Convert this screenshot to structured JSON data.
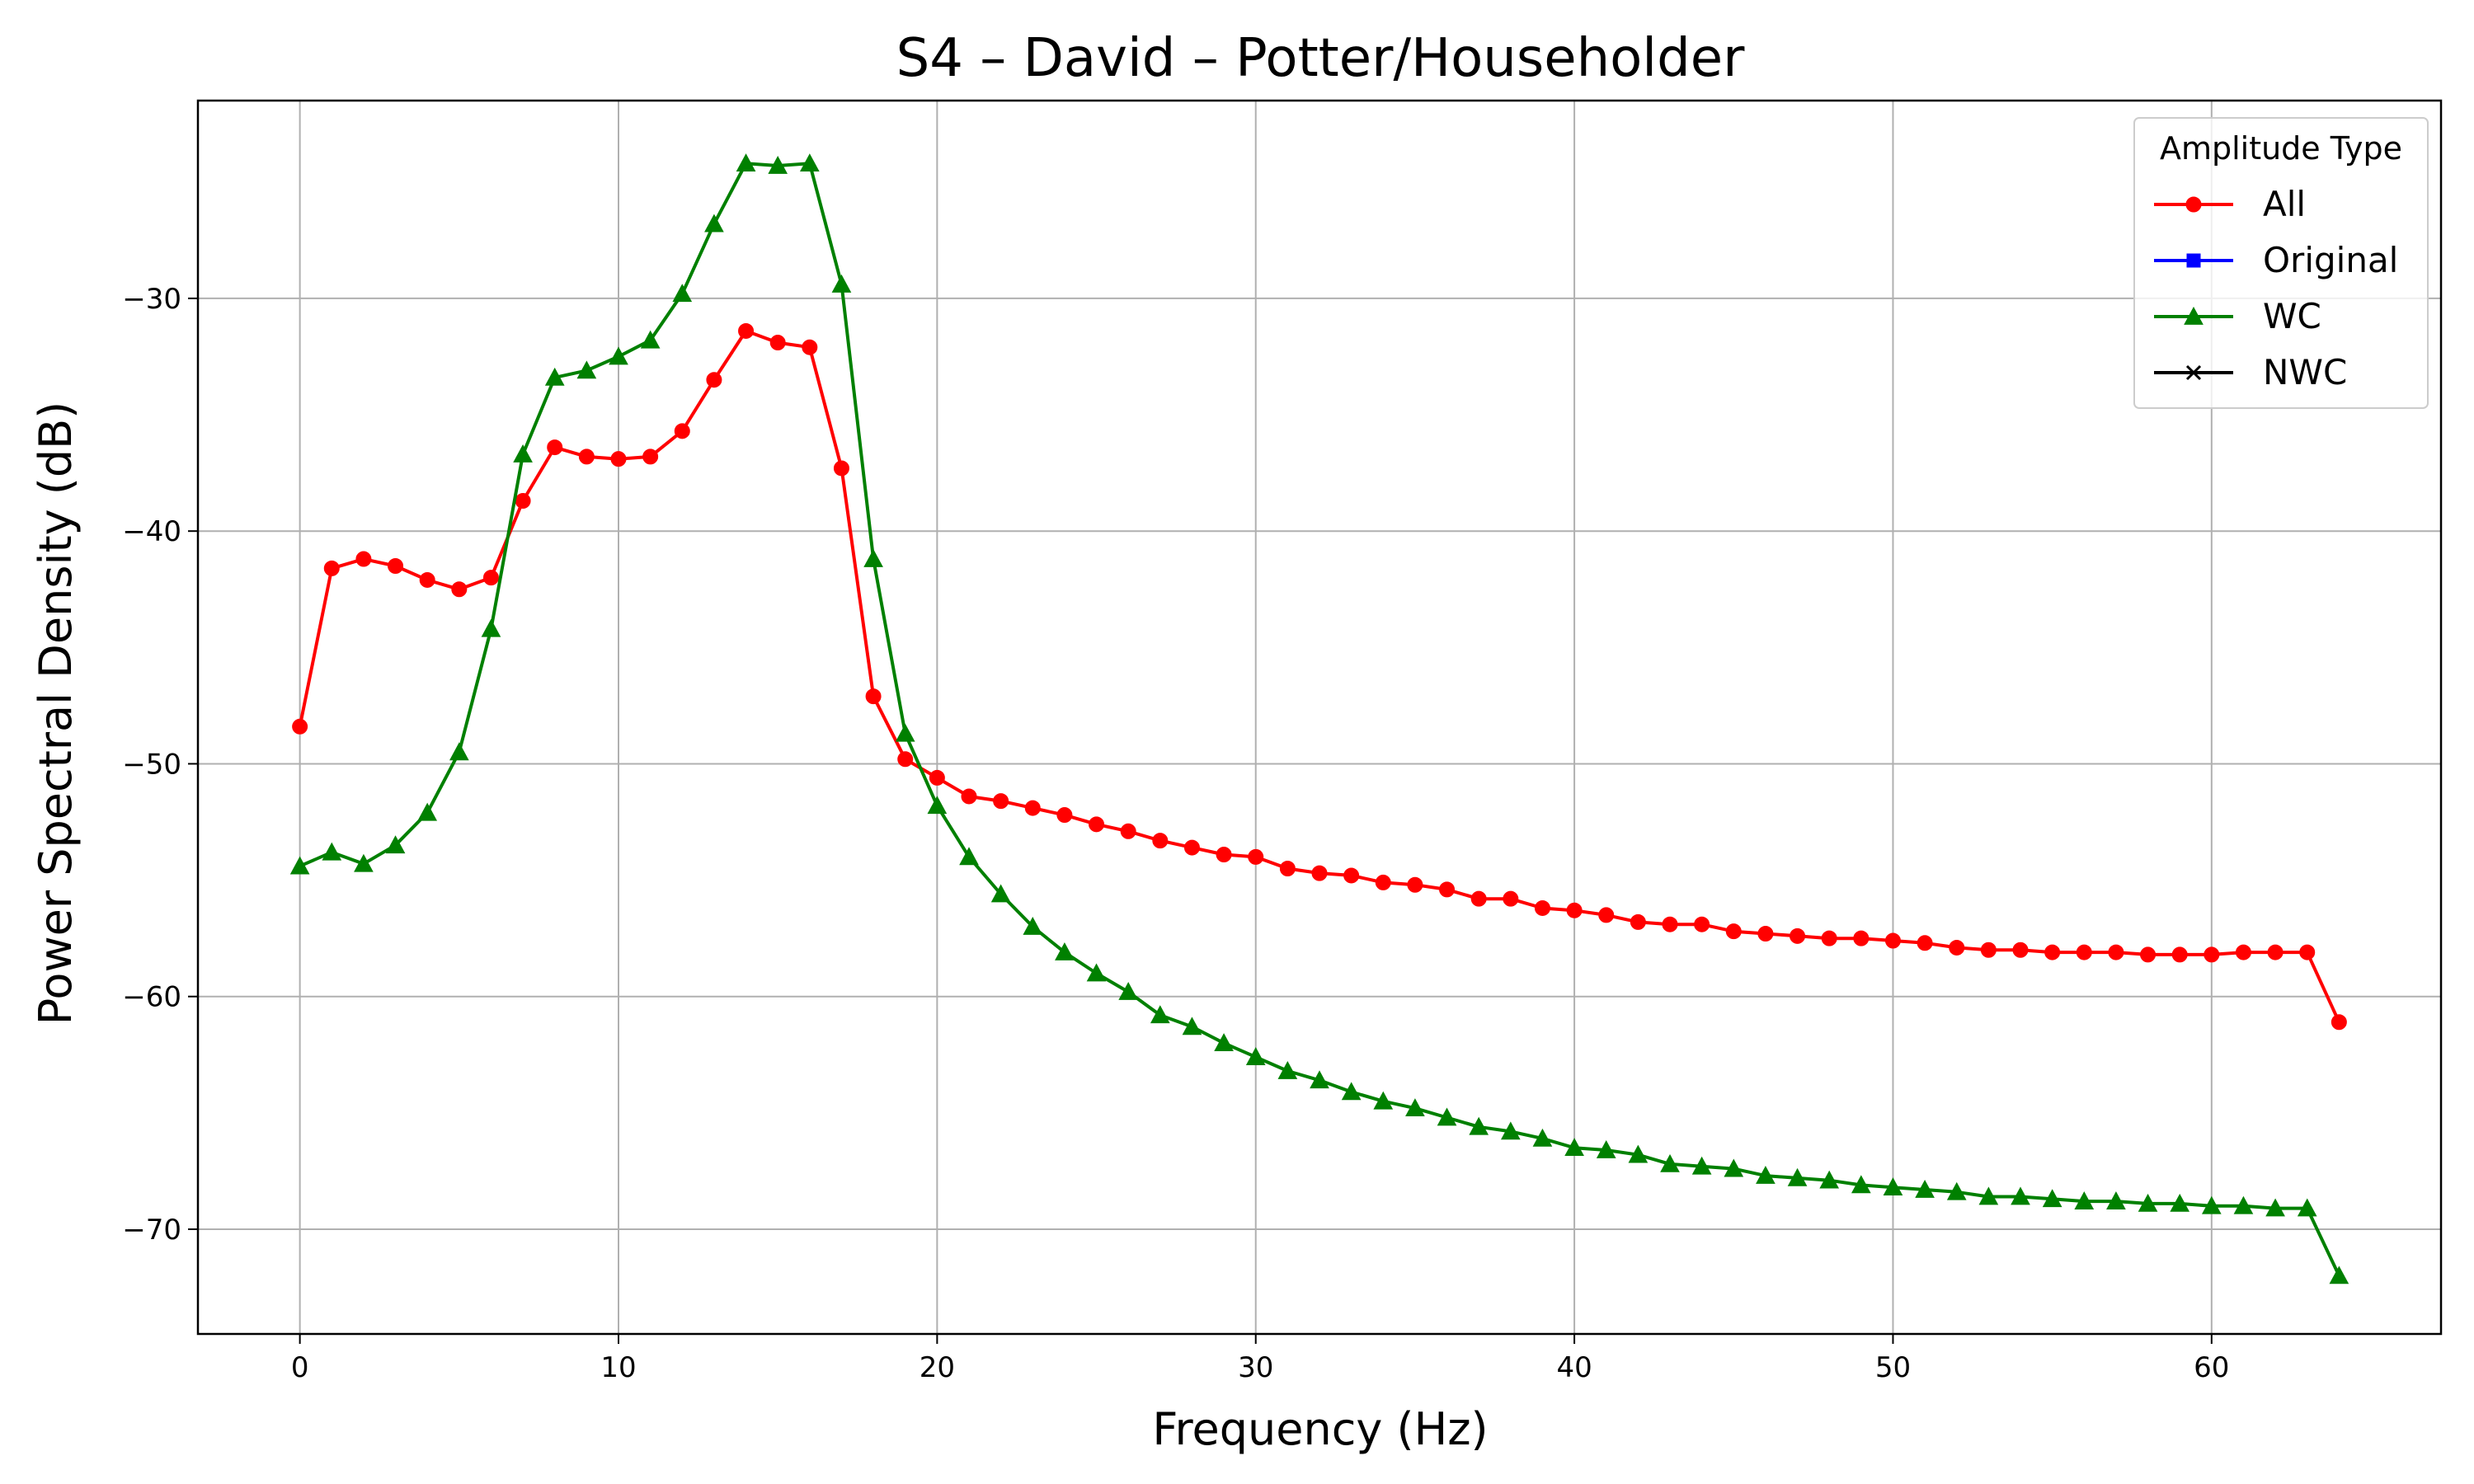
{
  "chart_data": {
    "type": "line",
    "title": "S4 – David – Potter/Householder",
    "xlabel": "Frequency (Hz)",
    "ylabel": "Power Spectral Density (dB)",
    "xlim": [
      -3.2,
      67.2
    ],
    "ylim": [
      -74.5,
      -21.5
    ],
    "xticks": [
      0,
      10,
      20,
      30,
      40,
      50,
      60
    ],
    "yticks": [
      -30,
      -40,
      -50,
      -60,
      -70
    ],
    "xtick_labels": [
      "0",
      "10",
      "20",
      "30",
      "40",
      "50",
      "60"
    ],
    "ytick_labels": [
      "−30",
      "−40",
      "−50",
      "−60",
      "−70"
    ],
    "grid": true,
    "legend": {
      "title": "Amplitude Type",
      "placement": "top-right",
      "entries": [
        {
          "label": "All",
          "color": "#ff0000",
          "marker": "circle"
        },
        {
          "label": "Original",
          "color": "#0000ff",
          "marker": "square"
        },
        {
          "label": "WC",
          "color": "#008000",
          "marker": "triangle"
        },
        {
          "label": "NWC",
          "color": "#000000",
          "marker": "x"
        }
      ]
    },
    "x": [
      0,
      1,
      2,
      3,
      4,
      5,
      6,
      7,
      8,
      9,
      10,
      11,
      12,
      13,
      14,
      15,
      16,
      17,
      18,
      19,
      20,
      21,
      22,
      23,
      24,
      25,
      26,
      27,
      28,
      29,
      30,
      31,
      32,
      33,
      34,
      35,
      36,
      37,
      38,
      39,
      40,
      41,
      42,
      43,
      44,
      45,
      46,
      47,
      48,
      49,
      50,
      51,
      52,
      53,
      54,
      55,
      56,
      57,
      58,
      59,
      60,
      61,
      62,
      63,
      64
    ],
    "series": [
      {
        "name": "All",
        "color": "#ff0000",
        "marker": "circle",
        "values": [
          -48.4,
          -41.6,
          -41.2,
          -41.5,
          -42.1,
          -42.5,
          -42.0,
          -38.7,
          -36.4,
          -36.8,
          -36.9,
          -36.8,
          -35.7,
          -33.5,
          -31.4,
          -31.9,
          -32.1,
          -37.3,
          -47.1,
          -49.8,
          -50.6,
          -51.4,
          -51.6,
          -51.9,
          -52.2,
          -52.6,
          -52.9,
          -53.3,
          -53.6,
          -53.9,
          -54.0,
          -54.5,
          -54.7,
          -54.8,
          -55.1,
          -55.2,
          -55.4,
          -55.8,
          -55.8,
          -56.2,
          -56.3,
          -56.5,
          -56.8,
          -56.9,
          -56.9,
          -57.2,
          -57.3,
          -57.4,
          -57.5,
          -57.5,
          -57.6,
          -57.7,
          -57.9,
          -58.0,
          -58.0,
          -58.1,
          -58.1,
          -58.1,
          -58.2,
          -58.2,
          -58.2,
          -58.1,
          -58.1,
          -58.1,
          -61.1
        ]
      },
      {
        "name": "WC",
        "color": "#008000",
        "marker": "triangle",
        "values": [
          -54.4,
          -53.8,
          -54.3,
          -53.5,
          -52.1,
          -49.5,
          -44.2,
          -36.7,
          -33.4,
          -33.1,
          -32.5,
          -31.8,
          -29.8,
          -26.8,
          -24.2,
          -24.3,
          -24.2,
          -29.4,
          -41.2,
          -48.7,
          -51.8,
          -54.0,
          -55.6,
          -57.0,
          -58.1,
          -59.0,
          -59.8,
          -60.8,
          -61.3,
          -62.0,
          -62.6,
          -63.2,
          -63.6,
          -64.1,
          -64.5,
          -64.8,
          -65.2,
          -65.6,
          -65.8,
          -66.1,
          -66.5,
          -66.6,
          -66.8,
          -67.2,
          -67.3,
          -67.4,
          -67.7,
          -67.8,
          -67.9,
          -68.1,
          -68.2,
          -68.3,
          -68.4,
          -68.6,
          -68.6,
          -68.7,
          -68.8,
          -68.8,
          -68.9,
          -68.9,
          -69.0,
          -69.0,
          -69.1,
          -69.1,
          -72.0
        ]
      }
    ]
  }
}
